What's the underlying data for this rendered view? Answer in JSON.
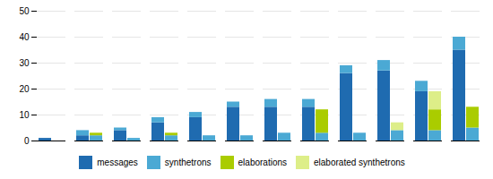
{
  "chart_data": {
    "type": "bar",
    "stacked": true,
    "categories": [
      null,
      null,
      null,
      null,
      null,
      null,
      null,
      null,
      null,
      null,
      null,
      null
    ],
    "bars": [
      {
        "series": [
          {
            "name": "messages",
            "color": "#1F6BB0",
            "values": [
              1,
              2,
              4,
              7,
              9,
              13,
              13,
              13,
              26,
              27,
              19,
              35
            ]
          },
          {
            "name": "synthetrons",
            "color": "#4BA9D4",
            "values": [
              0,
              2,
              1,
              2,
              2,
              2,
              3,
              3,
              3,
              4,
              4,
              5
            ]
          }
        ]
      },
      {
        "series": [
          {
            "name": "synthetrons",
            "color": "#4BA9D4",
            "values": [
              0,
              2,
              1,
              2,
              2,
              2,
              3,
              3,
              3,
              4,
              4,
              5
            ]
          },
          {
            "name": "elaborations",
            "color": "#AACC00",
            "values": [
              0,
              1,
              0,
              1,
              0,
              0,
              0,
              9,
              0,
              0,
              8,
              8
            ]
          },
          {
            "name": "elaborated synthetrons",
            "color": "#DDEE88",
            "values": [
              0,
              0,
              0,
              0,
              0,
              0,
              0,
              0,
              0,
              3,
              7,
              0
            ]
          }
        ]
      }
    ],
    "ylim": [
      0,
      50
    ],
    "yticks": [
      0,
      10,
      20,
      30,
      40,
      50
    ],
    "grid": true,
    "legend": "bottom",
    "tick_labels": "y"
  }
}
